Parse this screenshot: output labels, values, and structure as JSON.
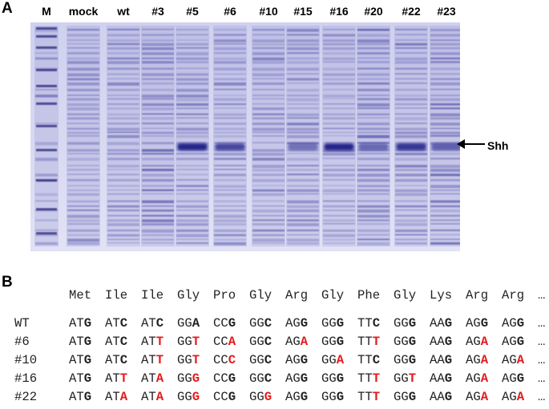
{
  "panel_a": {
    "label": "A",
    "lanes": [
      "M",
      "mock",
      "wt",
      "#3",
      "#5",
      "#6",
      "#10",
      "#15",
      "#16",
      "#20",
      "#22",
      "#23"
    ],
    "band_label": "Shh"
  },
  "panel_b": {
    "label": "B",
    "amino_acids": [
      "Met",
      "Ile",
      "Ile",
      "Gly",
      "Pro",
      "Gly",
      "Arg",
      "Gly",
      "Phe",
      "Gly",
      "Lys",
      "Arg",
      "Arg",
      "…"
    ],
    "rows": [
      {
        "name": "WT",
        "codons": [
          "ATG",
          "ATC",
          "ATC",
          "GGA",
          "CCG",
          "GGC",
          "AGG",
          "GGG",
          "TTC",
          "GGG",
          "AAG",
          "AGG",
          "AGG",
          "…"
        ]
      },
      {
        "name": "#6",
        "codons": [
          "ATG",
          "ATC",
          "ATT",
          "GGT",
          "CCA",
          "GGC",
          "AGA",
          "GGG",
          "TTT",
          "GGG",
          "AAG",
          "AGA",
          "AGG",
          "…"
        ]
      },
      {
        "name": "#10",
        "codons": [
          "ATG",
          "ATC",
          "ATT",
          "GGT",
          "CCC",
          "GGC",
          "AGG",
          "GGA",
          "TTC",
          "GGG",
          "AAG",
          "AGA",
          "AGA",
          "…"
        ]
      },
      {
        "name": "#16",
        "codons": [
          "ATG",
          "ATT",
          "ATA",
          "GGG",
          "CCG",
          "GGC",
          "AGG",
          "GGG",
          "TTT",
          "GGT",
          "AAG",
          "AGA",
          "AGG",
          "…"
        ]
      },
      {
        "name": "#22",
        "codons": [
          "ATG",
          "ATA",
          "ATA",
          "GGG",
          "CCG",
          "GGG",
          "AGG",
          "GGG",
          "TTT",
          "GGG",
          "AAG",
          "AGA",
          "AGA",
          "…"
        ]
      }
    ]
  }
}
